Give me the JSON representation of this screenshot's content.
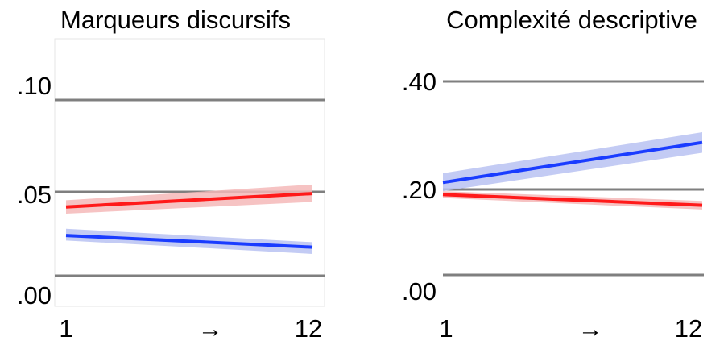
{
  "chart_data": [
    {
      "type": "line",
      "title": "Marqueurs discursifs",
      "x_ticks": [
        "1",
        "→",
        "12"
      ],
      "x": [
        1,
        12
      ],
      "y_ticks": [
        ".00",
        ".05",
        ".10"
      ],
      "ylim": [
        -0.0,
        0.1
      ],
      "grid": true,
      "series": [
        {
          "color": "#ff1a1a",
          "band_color": "#f4b8b8",
          "values": [
            0.041,
            0.049
          ],
          "ci_lower": [
            0.037,
            0.044
          ],
          "ci_upper": [
            0.045,
            0.054
          ]
        },
        {
          "color": "#1a3cff",
          "band_color": "#b8c2f2",
          "values": [
            0.024,
            0.017
          ],
          "ci_lower": [
            0.021,
            0.013
          ],
          "ci_upper": [
            0.028,
            0.02
          ]
        }
      ]
    },
    {
      "type": "line",
      "title": "Complexité descriptive",
      "x_ticks": [
        "1",
        "→",
        "12"
      ],
      "x": [
        1,
        12
      ],
      "y_ticks": [
        ".00",
        ".20",
        ".40"
      ],
      "ylim": [
        0.0,
        0.4
      ],
      "grid": true,
      "series": [
        {
          "color": "#ff1a1a",
          "band_color": "#f4b8b8",
          "values": [
            0.188,
            0.163
          ],
          "ci_lower": [
            0.18,
            0.153
          ],
          "ci_upper": [
            0.196,
            0.173
          ]
        },
        {
          "color": "#1a3cff",
          "band_color": "#b8c2f2",
          "values": [
            0.213,
            0.287
          ],
          "ci_lower": [
            0.196,
            0.268
          ],
          "ci_upper": [
            0.23,
            0.306
          ]
        }
      ]
    }
  ]
}
